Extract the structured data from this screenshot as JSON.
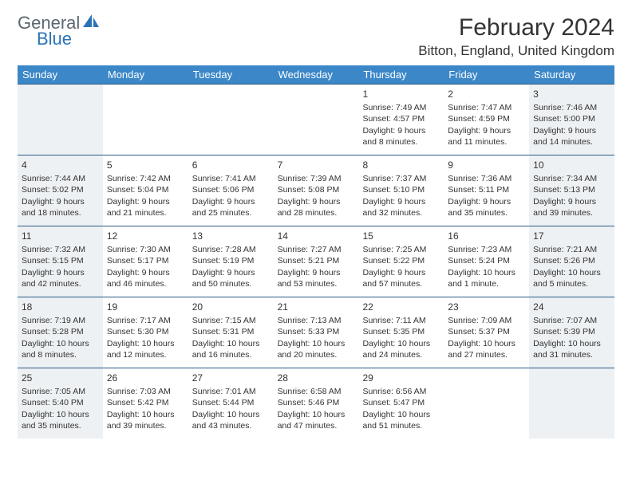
{
  "logo": {
    "top": "General",
    "bottom": "Blue"
  },
  "title": "February 2024",
  "location": "Bitton, England, United Kingdom",
  "header_bg": "#3b87c8",
  "week_border": "#2b5b87",
  "shade_bg": "#eef1f3",
  "day_names": [
    "Sunday",
    "Monday",
    "Tuesday",
    "Wednesday",
    "Thursday",
    "Friday",
    "Saturday"
  ],
  "weeks": [
    [
      {
        "shade": true
      },
      {},
      {},
      {},
      {
        "n": "1",
        "rise": "7:49 AM",
        "set": "4:57 PM",
        "d1": "Daylight: 9 hours",
        "d2": "and 8 minutes."
      },
      {
        "n": "2",
        "rise": "7:47 AM",
        "set": "4:59 PM",
        "d1": "Daylight: 9 hours",
        "d2": "and 11 minutes."
      },
      {
        "n": "3",
        "rise": "7:46 AM",
        "set": "5:00 PM",
        "d1": "Daylight: 9 hours",
        "d2": "and 14 minutes.",
        "shade": true
      }
    ],
    [
      {
        "n": "4",
        "rise": "7:44 AM",
        "set": "5:02 PM",
        "d1": "Daylight: 9 hours",
        "d2": "and 18 minutes.",
        "shade": true
      },
      {
        "n": "5",
        "rise": "7:42 AM",
        "set": "5:04 PM",
        "d1": "Daylight: 9 hours",
        "d2": "and 21 minutes."
      },
      {
        "n": "6",
        "rise": "7:41 AM",
        "set": "5:06 PM",
        "d1": "Daylight: 9 hours",
        "d2": "and 25 minutes."
      },
      {
        "n": "7",
        "rise": "7:39 AM",
        "set": "5:08 PM",
        "d1": "Daylight: 9 hours",
        "d2": "and 28 minutes."
      },
      {
        "n": "8",
        "rise": "7:37 AM",
        "set": "5:10 PM",
        "d1": "Daylight: 9 hours",
        "d2": "and 32 minutes."
      },
      {
        "n": "9",
        "rise": "7:36 AM",
        "set": "5:11 PM",
        "d1": "Daylight: 9 hours",
        "d2": "and 35 minutes."
      },
      {
        "n": "10",
        "rise": "7:34 AM",
        "set": "5:13 PM",
        "d1": "Daylight: 9 hours",
        "d2": "and 39 minutes.",
        "shade": true
      }
    ],
    [
      {
        "n": "11",
        "rise": "7:32 AM",
        "set": "5:15 PM",
        "d1": "Daylight: 9 hours",
        "d2": "and 42 minutes.",
        "shade": true
      },
      {
        "n": "12",
        "rise": "7:30 AM",
        "set": "5:17 PM",
        "d1": "Daylight: 9 hours",
        "d2": "and 46 minutes."
      },
      {
        "n": "13",
        "rise": "7:28 AM",
        "set": "5:19 PM",
        "d1": "Daylight: 9 hours",
        "d2": "and 50 minutes."
      },
      {
        "n": "14",
        "rise": "7:27 AM",
        "set": "5:21 PM",
        "d1": "Daylight: 9 hours",
        "d2": "and 53 minutes."
      },
      {
        "n": "15",
        "rise": "7:25 AM",
        "set": "5:22 PM",
        "d1": "Daylight: 9 hours",
        "d2": "and 57 minutes."
      },
      {
        "n": "16",
        "rise": "7:23 AM",
        "set": "5:24 PM",
        "d1": "Daylight: 10 hours",
        "d2": "and 1 minute."
      },
      {
        "n": "17",
        "rise": "7:21 AM",
        "set": "5:26 PM",
        "d1": "Daylight: 10 hours",
        "d2": "and 5 minutes.",
        "shade": true
      }
    ],
    [
      {
        "n": "18",
        "rise": "7:19 AM",
        "set": "5:28 PM",
        "d1": "Daylight: 10 hours",
        "d2": "and 8 minutes.",
        "shade": true
      },
      {
        "n": "19",
        "rise": "7:17 AM",
        "set": "5:30 PM",
        "d1": "Daylight: 10 hours",
        "d2": "and 12 minutes."
      },
      {
        "n": "20",
        "rise": "7:15 AM",
        "set": "5:31 PM",
        "d1": "Daylight: 10 hours",
        "d2": "and 16 minutes."
      },
      {
        "n": "21",
        "rise": "7:13 AM",
        "set": "5:33 PM",
        "d1": "Daylight: 10 hours",
        "d2": "and 20 minutes."
      },
      {
        "n": "22",
        "rise": "7:11 AM",
        "set": "5:35 PM",
        "d1": "Daylight: 10 hours",
        "d2": "and 24 minutes."
      },
      {
        "n": "23",
        "rise": "7:09 AM",
        "set": "5:37 PM",
        "d1": "Daylight: 10 hours",
        "d2": "and 27 minutes."
      },
      {
        "n": "24",
        "rise": "7:07 AM",
        "set": "5:39 PM",
        "d1": "Daylight: 10 hours",
        "d2": "and 31 minutes.",
        "shade": true
      }
    ],
    [
      {
        "n": "25",
        "rise": "7:05 AM",
        "set": "5:40 PM",
        "d1": "Daylight: 10 hours",
        "d2": "and 35 minutes.",
        "shade": true
      },
      {
        "n": "26",
        "rise": "7:03 AM",
        "set": "5:42 PM",
        "d1": "Daylight: 10 hours",
        "d2": "and 39 minutes."
      },
      {
        "n": "27",
        "rise": "7:01 AM",
        "set": "5:44 PM",
        "d1": "Daylight: 10 hours",
        "d2": "and 43 minutes."
      },
      {
        "n": "28",
        "rise": "6:58 AM",
        "set": "5:46 PM",
        "d1": "Daylight: 10 hours",
        "d2": "and 47 minutes."
      },
      {
        "n": "29",
        "rise": "6:56 AM",
        "set": "5:47 PM",
        "d1": "Daylight: 10 hours",
        "d2": "and 51 minutes."
      },
      {},
      {
        "shade": true
      }
    ]
  ]
}
